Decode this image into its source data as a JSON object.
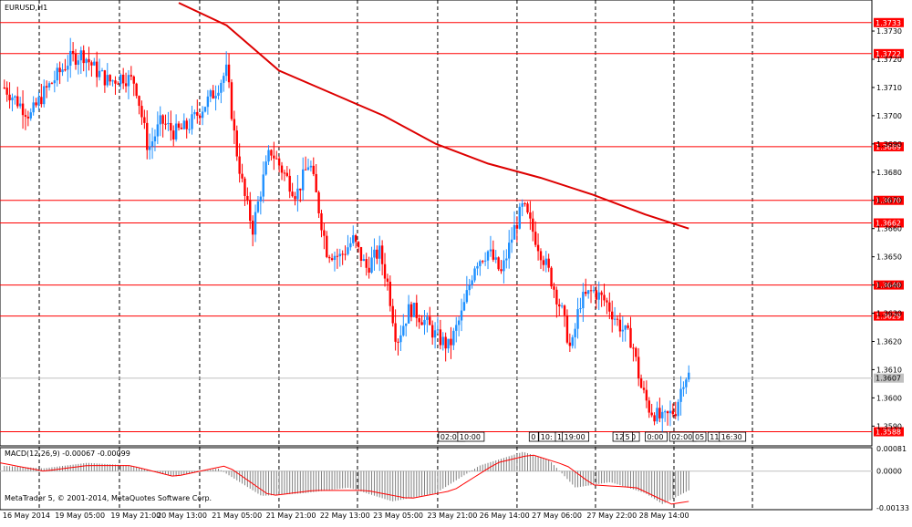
{
  "window": {
    "title": "EURUSD,H1",
    "copyright": "MetaTrader 5, © 2001-2014, MetaQuotes Software Corp."
  },
  "chart_data": {
    "type": "candlestick",
    "symbol": "EURUSD",
    "timeframe": "H1",
    "ylim": [
      1.3583,
      1.3741
    ],
    "y_ticks": [
      "1.3730",
      "1.3720",
      "1.3710",
      "1.3700",
      "1.3690",
      "1.3680",
      "1.3670",
      "1.3660",
      "1.3650",
      "1.3640",
      "1.3630",
      "1.3620",
      "1.3610",
      "1.3600",
      "1.3590"
    ],
    "x_ticks": [
      "16 May 2014",
      "19 May 05:00",
      "19 May 21:00",
      "20 May 13:00",
      "21 May 05:00",
      "21 May 21:00",
      "22 May 13:00",
      "23 May 05:00",
      "23 May 21:00",
      "26 May 14:00",
      "27 May 06:00",
      "27 May 22:00",
      "28 May 14:00"
    ],
    "horizontal_levels": [
      "1.3733",
      "1.3722",
      "1.3689",
      "1.3670",
      "1.3662",
      "1.3640",
      "1.3629",
      "1.3588"
    ],
    "current_price": "1.3607",
    "up_color": "#1e90ff",
    "down_color": "#ff0000",
    "level_color": "#ff0000",
    "ma_color": "#dd0000",
    "moving_average": [
      [
        0.205,
        1.374
      ],
      [
        0.26,
        1.3732
      ],
      [
        0.32,
        1.3716
      ],
      [
        0.38,
        1.3708
      ],
      [
        0.44,
        1.37
      ],
      [
        0.5,
        1.369
      ],
      [
        0.56,
        1.3683
      ],
      [
        0.62,
        1.3678
      ],
      [
        0.68,
        1.3672
      ],
      [
        0.74,
        1.3665
      ],
      [
        0.79,
        1.366
      ]
    ],
    "ohlc_anchors": [
      [
        0.005,
        1.371
      ],
      [
        0.02,
        1.3705
      ],
      [
        0.035,
        1.37
      ],
      [
        0.05,
        1.3708
      ],
      [
        0.065,
        1.3714
      ],
      [
        0.08,
        1.372
      ],
      [
        0.095,
        1.3722
      ],
      [
        0.11,
        1.3716
      ],
      [
        0.125,
        1.3712
      ],
      [
        0.14,
        1.3714
      ],
      [
        0.155,
        1.3712
      ],
      [
        0.17,
        1.3688
      ],
      [
        0.185,
        1.3698
      ],
      [
        0.2,
        1.3694
      ],
      [
        0.215,
        1.3696
      ],
      [
        0.23,
        1.3702
      ],
      [
        0.245,
        1.3708
      ],
      [
        0.26,
        1.3716
      ],
      [
        0.27,
        1.369
      ],
      [
        0.28,
        1.3672
      ],
      [
        0.29,
        1.366
      ],
      [
        0.3,
        1.3675
      ],
      [
        0.31,
        1.3688
      ],
      [
        0.325,
        1.368
      ],
      [
        0.34,
        1.3672
      ],
      [
        0.355,
        1.3684
      ],
      [
        0.365,
        1.3668
      ],
      [
        0.375,
        1.3652
      ],
      [
        0.39,
        1.365
      ],
      [
        0.405,
        1.3656
      ],
      [
        0.42,
        1.3646
      ],
      [
        0.435,
        1.3652
      ],
      [
        0.445,
        1.364
      ],
      [
        0.455,
        1.362
      ],
      [
        0.47,
        1.3632
      ],
      [
        0.485,
        1.3628
      ],
      [
        0.5,
        1.3622
      ],
      [
        0.515,
        1.3618
      ],
      [
        0.53,
        1.363
      ],
      [
        0.545,
        1.3648
      ],
      [
        0.56,
        1.3652
      ],
      [
        0.575,
        1.3644
      ],
      [
        0.59,
        1.366
      ],
      [
        0.6,
        1.3668
      ],
      [
        0.615,
        1.3656
      ],
      [
        0.63,
        1.3644
      ],
      [
        0.645,
        1.363
      ],
      [
        0.655,
        1.3616
      ],
      [
        0.665,
        1.3634
      ],
      [
        0.68,
        1.3638
      ],
      [
        0.695,
        1.3634
      ],
      [
        0.71,
        1.3626
      ],
      [
        0.725,
        1.362
      ],
      [
        0.735,
        1.3604
      ],
      [
        0.745,
        1.3596
      ],
      [
        0.76,
        1.3592
      ],
      [
        0.775,
        1.3596
      ],
      [
        0.785,
        1.3608
      ]
    ],
    "sub_window": {
      "indicator_label": "MACD(12,26,9) -0.00067 -0.00099",
      "ylim": [
        -0.0014,
        0.00085
      ],
      "y_ticks": [
        "0.00081",
        "0.0000",
        "-0.00133"
      ],
      "histogram_color": "#808080",
      "signal_color": "#ff0000",
      "histogram_anchors": [
        [
          0.0,
          0.0002
        ],
        [
          0.05,
          0.0001
        ],
        [
          0.1,
          0.0003
        ],
        [
          0.15,
          0.0002
        ],
        [
          0.2,
          -0.0002
        ],
        [
          0.25,
          0.0001
        ],
        [
          0.27,
          -0.0003
        ],
        [
          0.3,
          -0.0009
        ],
        [
          0.35,
          -0.0008
        ],
        [
          0.4,
          -0.0006
        ],
        [
          0.45,
          -0.0011
        ],
        [
          0.5,
          -0.0008
        ],
        [
          0.55,
          0.0002
        ],
        [
          0.6,
          0.0007
        ],
        [
          0.63,
          0.0004
        ],
        [
          0.66,
          -0.0006
        ],
        [
          0.7,
          -0.0004
        ],
        [
          0.74,
          -0.0008
        ],
        [
          0.76,
          -0.0012
        ],
        [
          0.79,
          -0.0007
        ]
      ],
      "signal_anchors": [
        [
          0.0,
          0.0003
        ],
        [
          0.05,
          0.0
        ],
        [
          0.1,
          0.0002
        ],
        [
          0.15,
          0.0002
        ],
        [
          0.2,
          -0.0002
        ],
        [
          0.26,
          0.0002
        ],
        [
          0.31,
          -0.0009
        ],
        [
          0.36,
          -0.0007
        ],
        [
          0.42,
          -0.0007
        ],
        [
          0.47,
          -0.001
        ],
        [
          0.52,
          -0.0007
        ],
        [
          0.57,
          0.0003
        ],
        [
          0.61,
          0.0006
        ],
        [
          0.65,
          0.0002
        ],
        [
          0.68,
          -0.0005
        ],
        [
          0.73,
          -0.0006
        ],
        [
          0.77,
          -0.0012
        ],
        [
          0.79,
          -0.0011
        ]
      ]
    },
    "event_markers": [
      "02:00",
      "10:00",
      "0",
      "10:",
      "1",
      "19:00",
      "12:00",
      "5",
      "0:00",
      "02:00",
      "05",
      "11",
      "16:30"
    ]
  }
}
